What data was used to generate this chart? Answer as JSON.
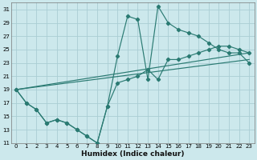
{
  "xlabel": "Humidex (Indice chaleur)",
  "background_color": "#cce8ec",
  "grid_color": "#aacdd4",
  "line_color": "#2a7a72",
  "xlim": [
    -0.5,
    23.5
  ],
  "ylim": [
    11,
    32
  ],
  "xticks": [
    0,
    1,
    2,
    3,
    4,
    5,
    6,
    7,
    8,
    9,
    10,
    11,
    12,
    13,
    14,
    15,
    16,
    17,
    18,
    19,
    20,
    21,
    22,
    23
  ],
  "yticks": [
    11,
    13,
    15,
    17,
    19,
    21,
    23,
    25,
    27,
    29,
    31
  ],
  "curve1_x": [
    0,
    1,
    2,
    3,
    4,
    5,
    6,
    7,
    8,
    9,
    10,
    11,
    12,
    13,
    14,
    15,
    16,
    17,
    18,
    19,
    20,
    21,
    22,
    23
  ],
  "curve1_y": [
    19,
    17,
    16,
    14,
    14.5,
    14,
    13,
    12,
    11,
    16.5,
    24,
    30,
    29.5,
    20.5,
    31.5,
    29,
    28,
    27.5,
    27,
    26,
    25,
    24.5,
    24.5,
    23
  ],
  "curve2_x": [
    0,
    1,
    2,
    3,
    4,
    5,
    6,
    7,
    8,
    9,
    10,
    11,
    12,
    13,
    14,
    15,
    16,
    17,
    18,
    19,
    20,
    21,
    22,
    23
  ],
  "curve2_y": [
    19,
    17,
    16,
    14,
    14.5,
    14,
    13,
    12,
    11,
    16.5,
    20,
    20.5,
    21,
    22,
    20.5,
    23.5,
    23.5,
    24,
    24.5,
    25,
    25.5,
    25.5,
    25,
    24.5
  ],
  "line3_x": [
    0,
    23
  ],
  "line3_y": [
    19,
    24.5
  ],
  "line4_x": [
    0,
    23
  ],
  "line4_y": [
    19,
    23.5
  ]
}
